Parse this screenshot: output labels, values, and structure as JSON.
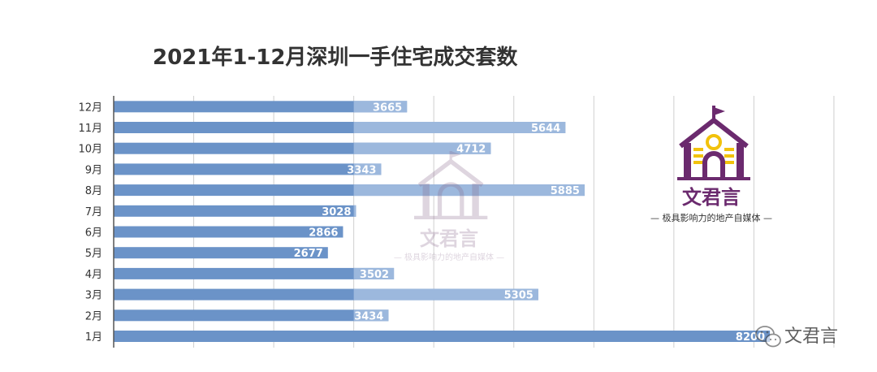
{
  "chart_data": {
    "type": "bar",
    "orientation": "horizontal",
    "title": "2021年1-12月深圳一手住宅成交套数",
    "categories": [
      "1月",
      "2月",
      "3月",
      "4月",
      "5月",
      "6月",
      "7月",
      "8月",
      "9月",
      "10月",
      "11月",
      "12月"
    ],
    "series": [
      {
        "values": [
          8200,
          3434,
          5305,
          3502,
          2677,
          2866,
          3028,
          5885,
          3343,
          4712,
          5644,
          3665
        ]
      }
    ],
    "xlim": [
      0,
      9000
    ],
    "grid": true,
    "bar_color": "#6b93c8",
    "bar_highlight_color": "#9cb8dd"
  },
  "watermark": {
    "brand": "文君言",
    "slogan": "— 极具影响力的地产自媒体 —",
    "corner_label": "文君言",
    "colors": {
      "purple": "#6b2a6e",
      "gold": "#f2c20c"
    }
  }
}
